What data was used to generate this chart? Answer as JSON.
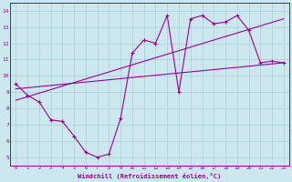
{
  "xlabel": "Windchill (Refroidissement éolien,°C)",
  "xlim": [
    -0.5,
    23.5
  ],
  "ylim": [
    4.5,
    14.5
  ],
  "xticks": [
    0,
    1,
    2,
    3,
    4,
    5,
    6,
    7,
    8,
    9,
    10,
    11,
    12,
    13,
    14,
    15,
    16,
    17,
    18,
    19,
    20,
    21,
    22,
    23
  ],
  "yticks": [
    5,
    6,
    7,
    8,
    9,
    10,
    11,
    12,
    13,
    14
  ],
  "bg_color": "#cce8ee",
  "line_color": "#990099",
  "grid_color": "#aad4da",
  "line1_x": [
    0,
    1,
    2,
    3,
    4,
    5,
    6,
    7,
    8,
    9,
    10,
    11,
    12,
    13,
    14,
    15,
    16,
    17,
    18,
    19,
    20,
    21,
    22,
    23
  ],
  "line1_y": [
    9.5,
    8.8,
    8.4,
    7.3,
    7.2,
    6.3,
    5.3,
    5.0,
    5.2,
    7.4,
    11.4,
    12.2,
    12.0,
    13.7,
    9.0,
    13.5,
    13.7,
    13.2,
    13.3,
    13.7,
    12.8,
    10.8,
    10.9,
    10.8
  ],
  "trend1_x": [
    0,
    23
  ],
  "trend1_y": [
    9.2,
    10.8
  ],
  "trend2_x": [
    0,
    23
  ],
  "trend2_y": [
    8.5,
    13.5
  ]
}
